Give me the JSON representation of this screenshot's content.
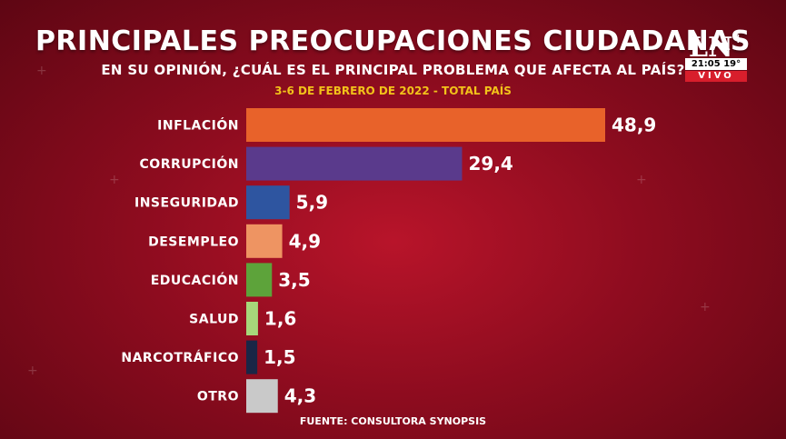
{
  "channel": {
    "logo_text": "LN",
    "logo_plus": "+",
    "clock": "21:05 19°",
    "live": "VIVO"
  },
  "header": {
    "title": "PRINCIPALES PREOCUPACIONES CIUDADANAS",
    "subtitle": "EN SU OPINIÓN, ¿CUÁL ES EL PRINCIPAL PROBLEMA QUE AFECTA AL PAÍS?",
    "date": "3-6 DE FEBRERO DE 2022 - TOTAL PAÍS"
  },
  "footer": {
    "source": "FUENTE: CONSULTORA SYNOPSIS"
  },
  "chart_data": {
    "type": "bar",
    "orientation": "horizontal",
    "title": "PRINCIPALES PREOCUPACIONES CIUDADANAS",
    "subtitle": "EN SU OPINIÓN, ¿CUÁL ES EL PRINCIPAL PROBLEMA QUE AFECTA AL PAÍS?",
    "categories": [
      "INFLACIÓN",
      "CORRUPCIÓN",
      "INSEGURIDAD",
      "DESEMPLEO",
      "EDUCACIÓN",
      "SALUD",
      "NARCOTRÁFICO",
      "OTRO"
    ],
    "values": [
      48.9,
      29.4,
      5.9,
      4.9,
      3.5,
      1.6,
      1.5,
      4.3
    ],
    "value_labels": [
      "48,9",
      "29,4",
      "5,9",
      "4,9",
      "3,5",
      "1,6",
      "1,5",
      "4,3"
    ],
    "colors": [
      "#e8622a",
      "#5a3a8c",
      "#2e55a0",
      "#ee9462",
      "#5da33a",
      "#a7d77a",
      "#1a2646",
      "#c9c9c9"
    ],
    "xlim": [
      0,
      48.9
    ],
    "grid": false,
    "legend": "none"
  }
}
